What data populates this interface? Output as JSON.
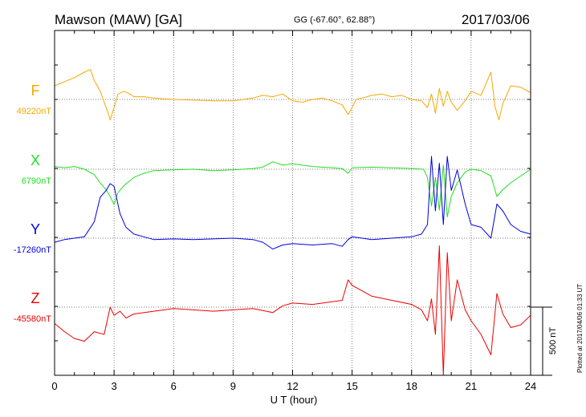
{
  "header": {
    "station": "Mawson (MAW)  [GA]",
    "coords": "GG (-67.60°,  62.88°)",
    "date": "2017/03/06"
  },
  "plotted": "Plotted at 2017/04/06 01:33 UT",
  "chart_data": {
    "type": "line",
    "xlabel": "U T (hour)",
    "xlim": [
      0,
      24
    ],
    "xticks": [
      "0",
      "3",
      "6",
      "9",
      "12",
      "15",
      "18",
      "21",
      "24"
    ],
    "scale_label": "500 nT",
    "scale_nt": 500,
    "grid": true,
    "series": [
      {
        "name": "F",
        "baseline_label": "49220nT",
        "baseline": 49220,
        "color": "#f5a800",
        "offset_nt": [
          [
            0,
            100
          ],
          [
            0.5,
            130
          ],
          [
            1.0,
            160
          ],
          [
            1.5,
            200
          ],
          [
            1.8,
            220
          ],
          [
            2.0,
            140
          ],
          [
            2.3,
            60
          ],
          [
            2.5,
            -20
          ],
          [
            2.7,
            -100
          ],
          [
            2.8,
            -150
          ],
          [
            3.0,
            -60
          ],
          [
            3.2,
            40
          ],
          [
            3.5,
            60
          ],
          [
            3.8,
            40
          ],
          [
            4.0,
            20
          ],
          [
            4.5,
            20
          ],
          [
            5,
            10
          ],
          [
            5.5,
            5
          ],
          [
            6,
            0
          ],
          [
            7,
            -5
          ],
          [
            8,
            -10
          ],
          [
            9,
            -10
          ],
          [
            10,
            10
          ],
          [
            10.5,
            30
          ],
          [
            11,
            20
          ],
          [
            11.5,
            40
          ],
          [
            12,
            -10
          ],
          [
            12.5,
            -20
          ],
          [
            13,
            0
          ],
          [
            13.5,
            10
          ],
          [
            14,
            -10
          ],
          [
            14.5,
            -40
          ],
          [
            14.8,
            -110
          ],
          [
            15,
            -60
          ],
          [
            15.2,
            0
          ],
          [
            15.5,
            10
          ],
          [
            16,
            30
          ],
          [
            16.5,
            40
          ],
          [
            17,
            20
          ],
          [
            17.5,
            30
          ],
          [
            18,
            0
          ],
          [
            18.5,
            -10
          ],
          [
            18.8,
            -60
          ],
          [
            19.0,
            40
          ],
          [
            19.2,
            -100
          ],
          [
            19.4,
            80
          ],
          [
            19.6,
            -50
          ],
          [
            19.8,
            60
          ],
          [
            20,
            -20
          ],
          [
            20.3,
            -80
          ],
          [
            20.7,
            -10
          ],
          [
            21,
            60
          ],
          [
            21.5,
            30
          ],
          [
            22.0,
            200
          ],
          [
            22.2,
            -50
          ],
          [
            22.4,
            -150
          ],
          [
            22.6,
            -30
          ],
          [
            23.0,
            100
          ],
          [
            23.5,
            90
          ],
          [
            24,
            50
          ]
        ]
      },
      {
        "name": "X",
        "baseline_label": "6790nT",
        "baseline": 6790,
        "color": "#22dd22",
        "offset_nt": [
          [
            0,
            20
          ],
          [
            0.5,
            10
          ],
          [
            1,
            20
          ],
          [
            1.5,
            0
          ],
          [
            2,
            -40
          ],
          [
            2.3,
            -100
          ],
          [
            2.6,
            -150
          ],
          [
            2.8,
            -200
          ],
          [
            3.0,
            -260
          ],
          [
            3.2,
            -170
          ],
          [
            3.5,
            -120
          ],
          [
            4,
            -60
          ],
          [
            4.5,
            -30
          ],
          [
            5,
            -10
          ],
          [
            6,
            -5
          ],
          [
            7,
            0
          ],
          [
            8,
            -10
          ],
          [
            9,
            -5
          ],
          [
            10,
            5
          ],
          [
            10.5,
            15
          ],
          [
            11,
            55
          ],
          [
            11.5,
            30
          ],
          [
            12,
            40
          ],
          [
            13,
            20
          ],
          [
            14,
            10
          ],
          [
            14.5,
            5
          ],
          [
            14.8,
            -30
          ],
          [
            15,
            10
          ],
          [
            16,
            15
          ],
          [
            17,
            10
          ],
          [
            18,
            5
          ],
          [
            18.6,
            0
          ],
          [
            18.8,
            -60
          ],
          [
            19.0,
            -270
          ],
          [
            19.2,
            -60
          ],
          [
            19.4,
            -300
          ],
          [
            19.6,
            30
          ],
          [
            19.8,
            -350
          ],
          [
            20.0,
            -200
          ],
          [
            20.3,
            -100
          ],
          [
            20.7,
            -20
          ],
          [
            21,
            0
          ],
          [
            21.5,
            -10
          ],
          [
            22.0,
            -50
          ],
          [
            22.3,
            -200
          ],
          [
            22.6,
            -150
          ],
          [
            23,
            -100
          ],
          [
            23.5,
            -50
          ],
          [
            24,
            0
          ]
        ]
      },
      {
        "name": "Y",
        "baseline_label": "-17260nT",
        "baseline": -17260,
        "color": "#0000dd",
        "offset_nt": [
          [
            0,
            -30
          ],
          [
            0.5,
            -10
          ],
          [
            1,
            0
          ],
          [
            1.5,
            10
          ],
          [
            2.0,
            120
          ],
          [
            2.3,
            300
          ],
          [
            2.6,
            350
          ],
          [
            2.8,
            400
          ],
          [
            3.0,
            380
          ],
          [
            3.3,
            180
          ],
          [
            3.6,
            80
          ],
          [
            4,
            30
          ],
          [
            4.5,
            10
          ],
          [
            5,
            -10
          ],
          [
            6,
            -5
          ],
          [
            7,
            -10
          ],
          [
            8,
            -5
          ],
          [
            9,
            0
          ],
          [
            10,
            -10
          ],
          [
            10.5,
            -30
          ],
          [
            11,
            -80
          ],
          [
            11.5,
            -50
          ],
          [
            12,
            -40
          ],
          [
            13,
            -50
          ],
          [
            14,
            -40
          ],
          [
            14.5,
            -60
          ],
          [
            14.8,
            -10
          ],
          [
            15,
            10
          ],
          [
            16,
            -10
          ],
          [
            17,
            0
          ],
          [
            18,
            10
          ],
          [
            18.5,
            30
          ],
          [
            18.8,
            100
          ],
          [
            19.0,
            600
          ],
          [
            19.2,
            200
          ],
          [
            19.4,
            550
          ],
          [
            19.6,
            100
          ],
          [
            19.8,
            600
          ],
          [
            20.0,
            350
          ],
          [
            20.3,
            500
          ],
          [
            20.7,
            250
          ],
          [
            21,
            100
          ],
          [
            21.5,
            80
          ],
          [
            22.0,
            0
          ],
          [
            22.3,
            250
          ],
          [
            22.6,
            200
          ],
          [
            23,
            100
          ],
          [
            23.5,
            50
          ],
          [
            24,
            30
          ]
        ]
      },
      {
        "name": "Z",
        "baseline_label": "-45580nT",
        "baseline": -45580,
        "color": "#ee0000",
        "offset_nt": [
          [
            0,
            -120
          ],
          [
            0.5,
            -180
          ],
          [
            1,
            -230
          ],
          [
            1.5,
            -250
          ],
          [
            2.0,
            -180
          ],
          [
            2.5,
            -200
          ],
          [
            2.8,
            0
          ],
          [
            3.0,
            -60
          ],
          [
            3.3,
            -30
          ],
          [
            3.6,
            -80
          ],
          [
            4,
            -50
          ],
          [
            5,
            -30
          ],
          [
            6,
            -10
          ],
          [
            7,
            -20
          ],
          [
            8,
            -30
          ],
          [
            9,
            -20
          ],
          [
            10,
            -10
          ],
          [
            11,
            -40
          ],
          [
            11.5,
            10
          ],
          [
            12,
            30
          ],
          [
            13,
            20
          ],
          [
            14,
            40
          ],
          [
            14.5,
            50
          ],
          [
            14.8,
            200
          ],
          [
            15,
            160
          ],
          [
            16,
            80
          ],
          [
            17,
            50
          ],
          [
            18,
            20
          ],
          [
            18.5,
            -20
          ],
          [
            18.8,
            -100
          ],
          [
            19.0,
            60
          ],
          [
            19.2,
            -200
          ],
          [
            19.4,
            450
          ],
          [
            19.6,
            -500
          ],
          [
            19.8,
            400
          ],
          [
            20.0,
            -100
          ],
          [
            20.3,
            200
          ],
          [
            20.7,
            -20
          ],
          [
            21,
            -100
          ],
          [
            21.5,
            -200
          ],
          [
            22.0,
            -350
          ],
          [
            22.3,
            100
          ],
          [
            22.6,
            -50
          ],
          [
            23,
            -150
          ],
          [
            23.5,
            -130
          ],
          [
            24,
            -60
          ]
        ]
      }
    ]
  }
}
